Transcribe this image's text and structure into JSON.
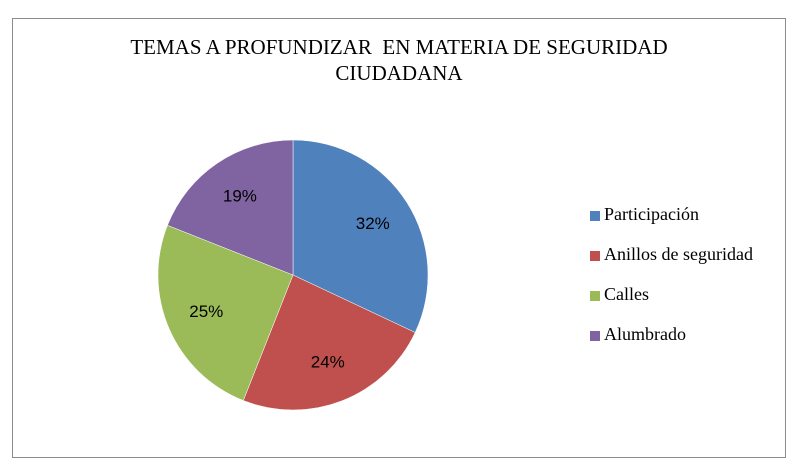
{
  "chart_data": {
    "type": "pie",
    "title": "TEMAS A PROFUNDIZAR  EN MATERIA DE SEGURIDAD CIUDADANA",
    "categories": [
      "Participación",
      "Anillos de seguridad",
      "Calles",
      "Alumbrado"
    ],
    "values": [
      32,
      24,
      25,
      19
    ],
    "value_labels": [
      "32%",
      "24%",
      "25%",
      "19%"
    ],
    "colors": [
      "#4f81bd",
      "#c0504d",
      "#9bbb59",
      "#8064a2"
    ],
    "legend": "right"
  }
}
